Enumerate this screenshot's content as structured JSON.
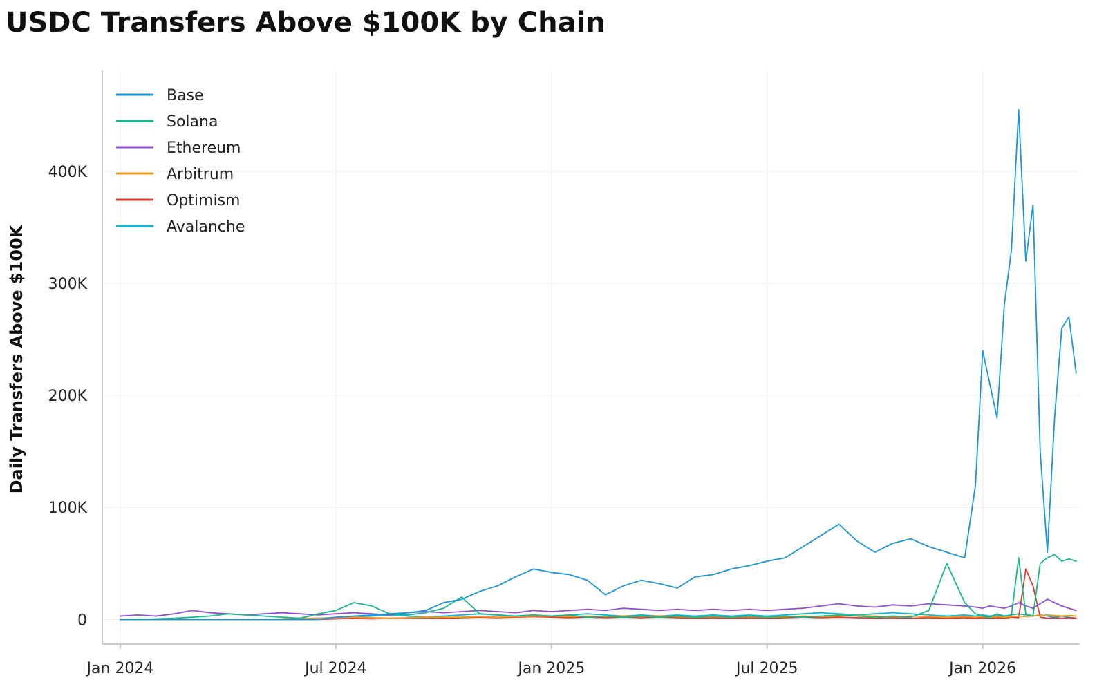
{
  "chart_data": {
    "type": "line",
    "title": "USDC Transfers Above $100K by Chain",
    "xlabel": "",
    "ylabel": "Daily Transfers Above $100K",
    "x_ticks": [
      "Jan 2024",
      "Jul 2024",
      "Jan 2025",
      "Jul 2025",
      "Jan 2026"
    ],
    "y_ticks": [
      "0",
      "100K",
      "200K",
      "300K",
      "400K"
    ],
    "y_tick_values": [
      0,
      100000,
      200000,
      300000,
      400000
    ],
    "ylim": [
      -22000,
      490000
    ],
    "x_unit": "months since Jan 2024",
    "xlim": [
      -0.5,
      26.7
    ],
    "grid": true,
    "legend_position": "top-left",
    "x": [
      0,
      0.5,
      1,
      1.5,
      2,
      2.5,
      3,
      3.5,
      4,
      4.5,
      5,
      5.5,
      6,
      6.5,
      7,
      7.5,
      8,
      8.5,
      9,
      9.5,
      10,
      10.5,
      11,
      11.5,
      12,
      12.5,
      13,
      13.5,
      14,
      14.5,
      15,
      15.5,
      16,
      16.5,
      17,
      17.5,
      18,
      18.5,
      19,
      19.5,
      20,
      20.5,
      21,
      21.5,
      22,
      22.5,
      23,
      23.5,
      23.8,
      24,
      24.2,
      24.4,
      24.6,
      24.8,
      25,
      25.2,
      25.4,
      25.6,
      25.8,
      26,
      26.2,
      26.4,
      26.6
    ],
    "series": [
      {
        "name": "Base",
        "color": "#1996d9",
        "values": [
          0,
          0,
          0,
          0,
          0,
          0,
          0,
          0,
          0,
          0,
          0,
          0,
          2000,
          3000,
          4000,
          5000,
          6000,
          8000,
          15000,
          18000,
          25000,
          30000,
          38000,
          45000,
          42000,
          40000,
          35000,
          22000,
          30000,
          35000,
          32000,
          28000,
          38000,
          40000,
          45000,
          48000,
          52000,
          55000,
          65000,
          75000,
          85000,
          70000,
          60000,
          68000,
          72000,
          65000,
          60000,
          55000,
          120000,
          240000,
          210000,
          180000,
          280000,
          330000,
          455000,
          320000,
          370000,
          150000,
          60000,
          180000,
          260000,
          270000,
          220000
        ]
      },
      {
        "name": "Solana",
        "color": "#16b88a",
        "values": [
          0,
          0,
          500,
          1000,
          2000,
          3000,
          5000,
          4000,
          3000,
          2000,
          1000,
          5000,
          8000,
          15000,
          12000,
          5000,
          4000,
          6000,
          10000,
          20000,
          5000,
          4000,
          3000,
          4000,
          3000,
          4000,
          2000,
          3000,
          2000,
          3000,
          2000,
          3000,
          2000,
          3000,
          2000,
          3000,
          2000,
          3000,
          2000,
          3000,
          4000,
          3000,
          2000,
          3000,
          2000,
          8000,
          50000,
          15000,
          5000,
          3000,
          2000,
          5000,
          3000,
          4000,
          55000,
          5000,
          3000,
          50000,
          55000,
          58000,
          52000,
          54000,
          52000
        ]
      },
      {
        "name": "Ethereum",
        "color": "#8e4dd6",
        "values": [
          3000,
          4000,
          3000,
          5000,
          8000,
          6000,
          5000,
          4000,
          5000,
          6000,
          5000,
          4000,
          5000,
          6000,
          5000,
          4000,
          6000,
          7000,
          6000,
          7000,
          8000,
          7000,
          6000,
          8000,
          7000,
          8000,
          9000,
          8000,
          10000,
          9000,
          8000,
          9000,
          8000,
          9000,
          8000,
          9000,
          8000,
          9000,
          10000,
          12000,
          14000,
          12000,
          11000,
          13000,
          12000,
          14000,
          13000,
          12000,
          11000,
          10000,
          12000,
          11000,
          10000,
          12000,
          15000,
          12000,
          10000,
          14000,
          18000,
          15000,
          12000,
          10000,
          8000
        ]
      },
      {
        "name": "Arbitrum",
        "color": "#f09a1a",
        "values": [
          0,
          0,
          0,
          0,
          0,
          0,
          0,
          0,
          0,
          500,
          1000,
          1000,
          1500,
          2000,
          1500,
          1000,
          1500,
          2000,
          2000,
          2000,
          2500,
          2000,
          2500,
          3000,
          3000,
          2500,
          3000,
          2500,
          3000,
          2500,
          3000,
          2500,
          2000,
          2500,
          2000,
          2500,
          2000,
          2500,
          3000,
          2500,
          3000,
          3500,
          3000,
          2500,
          3000,
          2500,
          2000,
          2500,
          2000,
          2500,
          2000,
          2500,
          2000,
          2500,
          3000,
          2500,
          3000,
          3500,
          4000,
          3500,
          3000,
          3500,
          3000
        ]
      },
      {
        "name": "Optimism",
        "color": "#e03a2f",
        "values": [
          0,
          0,
          0,
          0,
          0,
          0,
          0,
          0,
          0,
          0,
          0,
          0,
          500,
          1000,
          500,
          1000,
          1000,
          1500,
          1000,
          1500,
          2000,
          1500,
          2000,
          2500,
          2000,
          1500,
          2000,
          1500,
          2000,
          1500,
          2000,
          1500,
          1000,
          1500,
          1000,
          1500,
          1000,
          1500,
          2000,
          1500,
          2000,
          1500,
          1000,
          1500,
          1000,
          1500,
          1000,
          1500,
          1000,
          1500,
          1000,
          1500,
          1000,
          2000,
          1500,
          45000,
          30000,
          2000,
          1000,
          1500,
          1000,
          1500,
          1000
        ]
      },
      {
        "name": "Avalanche",
        "color": "#12b6cf",
        "values": [
          0,
          0,
          0,
          0,
          0,
          0,
          0,
          0,
          0,
          0,
          500,
          1000,
          1500,
          2000,
          3000,
          4000,
          3000,
          2000,
          3000,
          4000,
          5000,
          4000,
          3000,
          4000,
          3000,
          4000,
          5000,
          4000,
          3000,
          4000,
          3000,
          4000,
          3000,
          4000,
          3000,
          4000,
          3000,
          4000,
          5000,
          6000,
          5000,
          4000,
          5000,
          6000,
          5000,
          4000,
          3000,
          4000,
          3000,
          4000,
          3000,
          4000,
          3000,
          4000,
          5000,
          4000,
          3000,
          4000,
          3000,
          2000,
          3000,
          2000,
          1000
        ]
      }
    ]
  }
}
